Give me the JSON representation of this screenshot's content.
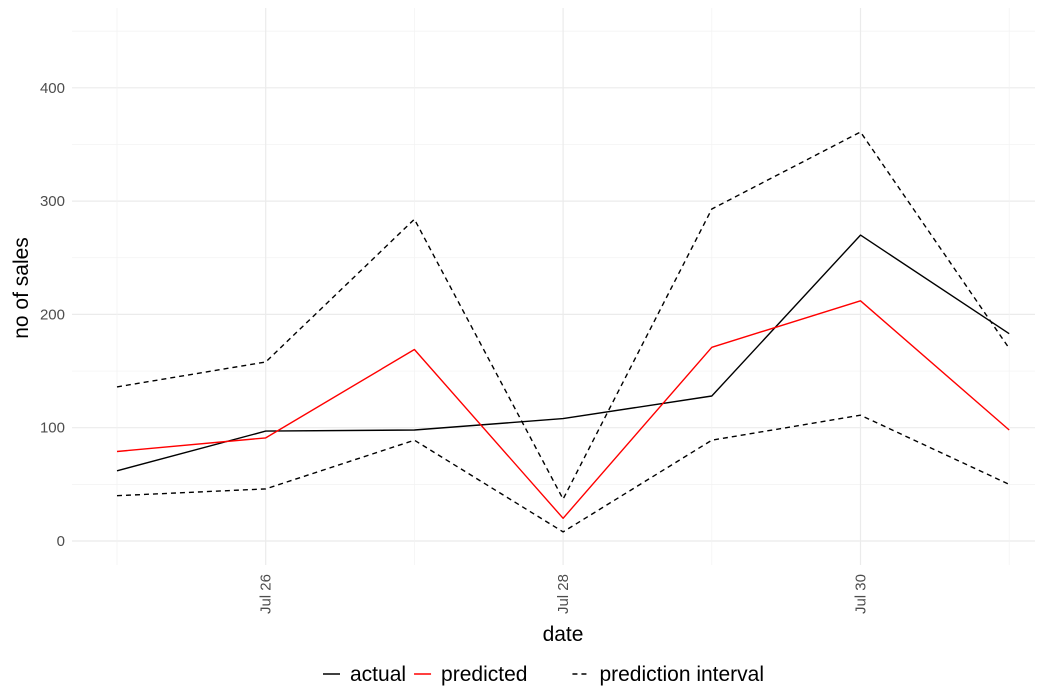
{
  "chart_data": {
    "type": "line",
    "xlabel": "date",
    "ylabel": "no of sales",
    "x": [
      "Jul 25",
      "Jul 26",
      "Jul 27",
      "Jul 28",
      "Jul 29",
      "Jul 30",
      "Jul 31"
    ],
    "x_ticks": [
      "Jul 26",
      "Jul 28",
      "Jul 30"
    ],
    "y_ticks": [
      0,
      100,
      200,
      300,
      400
    ],
    "ylim": [
      -25,
      460
    ],
    "grid": true,
    "legend_position": "bottom",
    "series": [
      {
        "name": "actual",
        "values": [
          62,
          97,
          98,
          108,
          128,
          270,
          183
        ],
        "color": "#000000",
        "dash": "solid"
      },
      {
        "name": "predicted",
        "values": [
          79,
          91,
          169,
          20,
          171,
          212,
          98
        ],
        "color": "#ff0000",
        "dash": "solid"
      },
      {
        "name": "prediction interval",
        "values": [
          136,
          158,
          284,
          37,
          293,
          361,
          170
        ],
        "color": "#000000",
        "dash": "dashed"
      },
      {
        "name": "prediction interval",
        "values": [
          40,
          46,
          89,
          8,
          89,
          111,
          50
        ],
        "color": "#000000",
        "dash": "dashed"
      }
    ],
    "legend": [
      {
        "label": "actual",
        "color": "#000000",
        "dash": "solid"
      },
      {
        "label": "predicted",
        "color": "#ff0000",
        "dash": "solid"
      },
      {
        "label": "prediction interval",
        "color": "#000000",
        "dash": "dashed"
      }
    ]
  }
}
